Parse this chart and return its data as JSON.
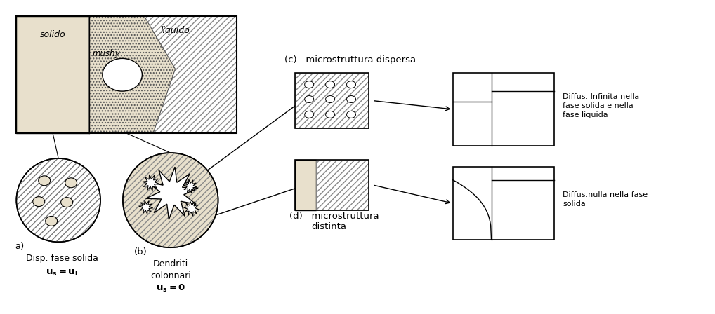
{
  "bg_color": "#ffffff",
  "light_tan": "#e8e0cc",
  "solido_label": "solido",
  "liquido_label": "liquido",
  "mushy_label": "mushy",
  "a_label": "a)",
  "a_desc1": "Disp. fase solida",
  "a_desc2": "u$_s$= u$_l$",
  "b_label": "(b)",
  "b_desc1": "Dendriti",
  "b_desc2": "colonnari",
  "b_desc3": "u$_s$= 0",
  "c_label": "(c)   microstruttura dispersa",
  "d_label": "(d)   microstruttura",
  "d_label2": "distinta",
  "diffus_inf": "Diffus. Infinita nella\nfase solida e nella\nfase liquida",
  "diffus_nulla": "Diffus.nulla nella fase\nsolida"
}
